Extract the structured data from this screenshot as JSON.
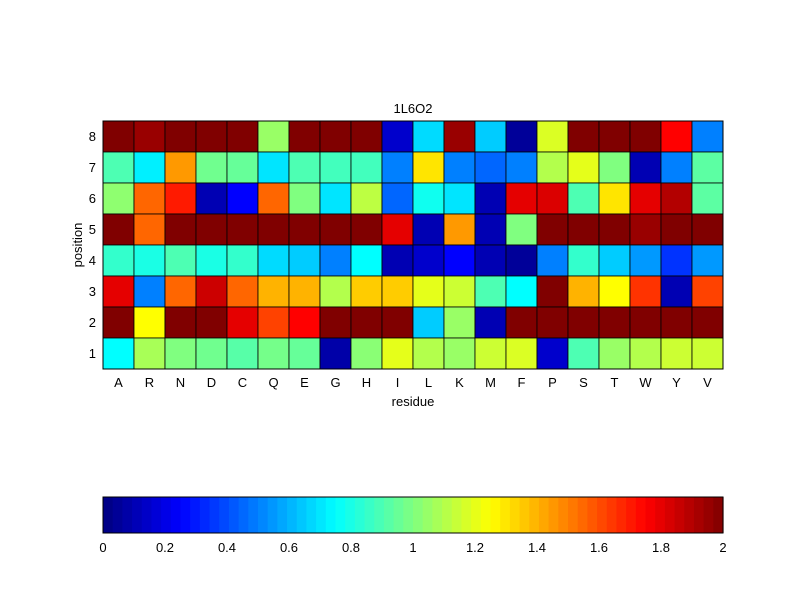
{
  "chart_data": {
    "type": "heatmap",
    "title": "1L6O2",
    "xlabel": "residue",
    "ylabel": "position",
    "x_categories": [
      "A",
      "R",
      "N",
      "D",
      "C",
      "Q",
      "E",
      "G",
      "H",
      "I",
      "L",
      "K",
      "M",
      "F",
      "P",
      "S",
      "T",
      "W",
      "Y",
      "V"
    ],
    "y_categories": [
      "8",
      "7",
      "6",
      "5",
      "4",
      "3",
      "2",
      "1"
    ],
    "colormap": "jet",
    "color_range": [
      0,
      2
    ],
    "values": [
      [
        2.0,
        1.95,
        2.0,
        2.0,
        2.0,
        1.05,
        2.0,
        2.0,
        2.0,
        0.15,
        0.68,
        1.95,
        0.65,
        0.05,
        1.18,
        2.0,
        2.0,
        2.0,
        1.75,
        0.5
      ],
      [
        0.9,
        0.72,
        1.45,
        0.97,
        0.95,
        0.7,
        0.9,
        0.88,
        0.88,
        0.5,
        1.3,
        0.5,
        0.45,
        0.5,
        1.1,
        1.2,
        1.0,
        0.1,
        0.5,
        0.93
      ],
      [
        1.03,
        1.55,
        1.7,
        0.1,
        0.25,
        1.55,
        1.0,
        0.7,
        1.12,
        0.45,
        0.78,
        0.7,
        0.1,
        1.8,
        1.82,
        0.9,
        1.3,
        1.8,
        1.9,
        0.93
      ],
      [
        2.0,
        1.55,
        2.0,
        2.0,
        2.0,
        2.0,
        2.0,
        2.0,
        2.0,
        1.8,
        0.1,
        1.45,
        0.1,
        1.0,
        2.0,
        2.0,
        2.0,
        1.95,
        2.0,
        2.0
      ],
      [
        0.85,
        0.8,
        0.9,
        0.8,
        0.85,
        0.68,
        0.65,
        0.5,
        0.75,
        0.1,
        0.15,
        0.25,
        0.1,
        0.05,
        0.5,
        0.85,
        0.65,
        0.55,
        0.35,
        0.55
      ],
      [
        1.8,
        0.5,
        1.55,
        1.85,
        1.55,
        1.4,
        1.4,
        1.1,
        1.35,
        1.35,
        1.2,
        1.15,
        0.9,
        0.75,
        2.0,
        1.4,
        1.25,
        1.65,
        0.1,
        1.62
      ],
      [
        2.0,
        1.25,
        2.0,
        2.0,
        1.8,
        1.62,
        1.75,
        2.0,
        2.0,
        2.0,
        0.65,
        1.05,
        0.1,
        2.0,
        2.0,
        2.0,
        2.0,
        2.0,
        2.0,
        2.0
      ],
      [
        0.75,
        1.08,
        1.0,
        0.97,
        0.92,
        0.98,
        0.95,
        0.08,
        1.02,
        1.2,
        1.1,
        1.05,
        1.15,
        1.18,
        0.15,
        0.9,
        1.05,
        1.1,
        1.15,
        1.15
      ]
    ],
    "colorbar": {
      "ticks": [
        "0",
        "0.2",
        "0.4",
        "0.6",
        "0.8",
        "1",
        "1.2",
        "1.4",
        "1.6",
        "1.8",
        "2"
      ],
      "orientation": "horizontal",
      "placement": "bottom"
    },
    "grid": true
  }
}
